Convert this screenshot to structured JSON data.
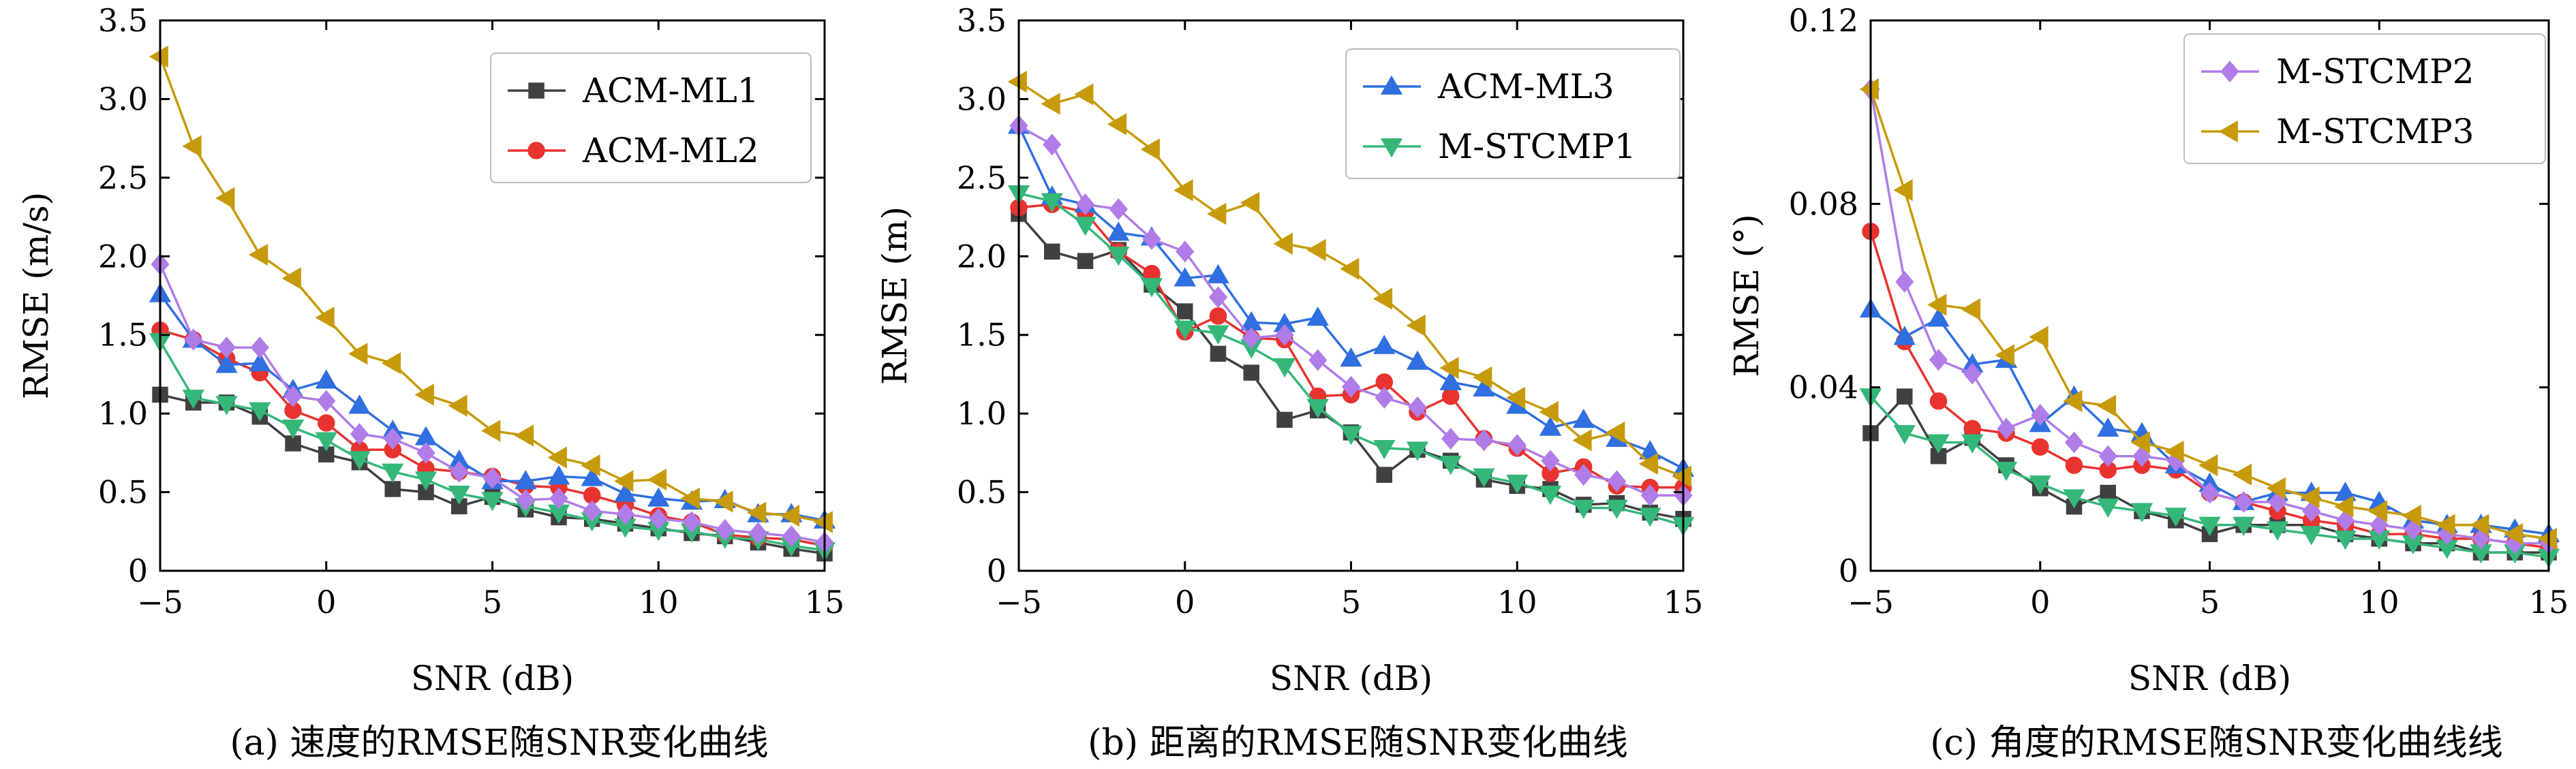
{
  "colors": {
    "ACM-ML1": "#404040",
    "ACM-ML2": "#e8332f",
    "ACM-ML3": "#2f6fe0",
    "M-STCMP1": "#35b779",
    "M-STCMP2": "#b07ce8",
    "M-STCMP3": "#c79a0b"
  },
  "markers": {
    "ACM-ML1": "square",
    "ACM-ML2": "circle",
    "ACM-ML3": "triangle-up",
    "M-STCMP1": "triangle-down",
    "M-STCMP2": "diamond",
    "M-STCMP3": "triangle-left"
  },
  "chart_data": [
    {
      "type": "line",
      "caption": "(a) 速度的RMSE随SNR变化曲线",
      "xlabel": "SNR (dB)",
      "ylabel": "RMSE (m/s)",
      "xlim": [
        -5,
        15
      ],
      "ylim": [
        0,
        3.5
      ],
      "xticks": [
        -5,
        0,
        5,
        10,
        15
      ],
      "xtick_labels": [
        "−5",
        "0",
        "5",
        "10",
        "15"
      ],
      "yticks": [
        0,
        0.5,
        1.0,
        1.5,
        2.0,
        2.5,
        3.0,
        3.5
      ],
      "ytick_labels": [
        "0",
        "0.5",
        "1.0",
        "1.5",
        "2.0",
        "2.5",
        "3.0",
        "3.5"
      ],
      "grid": false,
      "legend_position": "top-right",
      "legend": [
        "ACM-ML1",
        "ACM-ML2"
      ],
      "x": [
        -5,
        -4,
        -3,
        -2,
        -1,
        0,
        1,
        2,
        3,
        4,
        5,
        6,
        7,
        8,
        9,
        10,
        11,
        12,
        13,
        14,
        15
      ],
      "series": [
        {
          "name": "ACM-ML1",
          "values": [
            1.12,
            1.07,
            1.07,
            0.98,
            0.81,
            0.74,
            0.69,
            0.52,
            0.5,
            0.41,
            0.47,
            0.39,
            0.34,
            0.33,
            0.3,
            0.27,
            0.24,
            0.22,
            0.18,
            0.14,
            0.11
          ]
        },
        {
          "name": "ACM-ML2",
          "values": [
            1.53,
            1.47,
            1.35,
            1.26,
            1.02,
            0.94,
            0.77,
            0.77,
            0.65,
            0.63,
            0.6,
            0.54,
            0.53,
            0.48,
            0.42,
            0.35,
            0.31,
            0.23,
            0.21,
            0.2,
            0.16
          ]
        },
        {
          "name": "ACM-ML3",
          "values": [
            1.76,
            1.47,
            1.31,
            1.32,
            1.15,
            1.21,
            1.05,
            0.89,
            0.85,
            0.7,
            0.57,
            0.57,
            0.6,
            0.59,
            0.49,
            0.46,
            0.44,
            0.45,
            0.36,
            0.36,
            0.32
          ]
        },
        {
          "name": "M-STCMP1",
          "values": [
            1.46,
            1.1,
            1.06,
            1.02,
            0.91,
            0.83,
            0.71,
            0.63,
            0.58,
            0.49,
            0.45,
            0.41,
            0.37,
            0.32,
            0.28,
            0.26,
            0.25,
            0.21,
            0.2,
            0.16,
            0.13
          ]
        },
        {
          "name": "M-STCMP2",
          "values": [
            1.95,
            1.47,
            1.42,
            1.42,
            1.11,
            1.08,
            0.87,
            0.84,
            0.75,
            0.63,
            0.59,
            0.45,
            0.46,
            0.38,
            0.36,
            0.33,
            0.31,
            0.26,
            0.24,
            0.22,
            0.18
          ]
        },
        {
          "name": "M-STCMP3",
          "values": [
            3.27,
            2.7,
            2.37,
            2.01,
            1.86,
            1.61,
            1.38,
            1.32,
            1.12,
            1.05,
            0.89,
            0.86,
            0.72,
            0.67,
            0.57,
            0.58,
            0.46,
            0.44,
            0.37,
            0.35,
            0.31
          ]
        }
      ]
    },
    {
      "type": "line",
      "caption": "(b) 距离的RMSE随SNR变化曲线",
      "xlabel": "SNR (dB)",
      "ylabel": "RMSE (m)",
      "xlim": [
        -5,
        15
      ],
      "ylim": [
        0,
        3.5
      ],
      "xticks": [
        -5,
        0,
        5,
        10,
        15
      ],
      "xtick_labels": [
        "−5",
        "0",
        "5",
        "10",
        "15"
      ],
      "yticks": [
        0,
        0.5,
        1.0,
        1.5,
        2.0,
        2.5,
        3.0,
        3.5
      ],
      "ytick_labels": [
        "0",
        "0.5",
        "1.0",
        "1.5",
        "2.0",
        "2.5",
        "3.0",
        "3.5"
      ],
      "grid": false,
      "legend_position": "top-right",
      "legend": [
        "ACM-ML3",
        "M-STCMP1"
      ],
      "x": [
        -5,
        -4,
        -3,
        -2,
        -1,
        0,
        1,
        2,
        3,
        4,
        5,
        6,
        7,
        8,
        9,
        10,
        11,
        12,
        13,
        14,
        15
      ],
      "series": [
        {
          "name": "ACM-ML1",
          "values": [
            2.27,
            2.03,
            1.97,
            2.04,
            1.82,
            1.65,
            1.38,
            1.26,
            0.96,
            1.02,
            0.88,
            0.61,
            0.77,
            0.7,
            0.58,
            0.54,
            0.52,
            0.42,
            0.43,
            0.37,
            0.33
          ]
        },
        {
          "name": "ACM-ML2",
          "values": [
            2.31,
            2.33,
            2.28,
            2.03,
            1.89,
            1.52,
            1.62,
            1.48,
            1.47,
            1.11,
            1.12,
            1.2,
            1.01,
            1.11,
            0.84,
            0.78,
            0.62,
            0.66,
            0.54,
            0.53,
            0.53
          ]
        },
        {
          "name": "ACM-ML3",
          "values": [
            2.83,
            2.38,
            2.33,
            2.15,
            2.12,
            1.86,
            1.88,
            1.58,
            1.57,
            1.61,
            1.35,
            1.43,
            1.33,
            1.2,
            1.16,
            1.05,
            0.91,
            0.96,
            0.84,
            0.76,
            0.65
          ]
        },
        {
          "name": "M-STCMP1",
          "values": [
            2.4,
            2.35,
            2.2,
            2.01,
            1.81,
            1.54,
            1.51,
            1.42,
            1.3,
            1.04,
            0.87,
            0.78,
            0.77,
            0.68,
            0.6,
            0.56,
            0.49,
            0.4,
            0.4,
            0.35,
            0.29
          ]
        },
        {
          "name": "M-STCMP2",
          "values": [
            2.83,
            2.71,
            2.33,
            2.3,
            2.11,
            2.03,
            1.74,
            1.48,
            1.5,
            1.34,
            1.17,
            1.1,
            1.04,
            0.84,
            0.83,
            0.8,
            0.7,
            0.61,
            0.57,
            0.48,
            0.48
          ]
        },
        {
          "name": "M-STCMP3",
          "values": [
            3.11,
            2.97,
            3.03,
            2.84,
            2.68,
            2.42,
            2.27,
            2.34,
            2.08,
            2.04,
            1.92,
            1.73,
            1.56,
            1.29,
            1.23,
            1.1,
            1.01,
            0.83,
            0.88,
            0.68,
            0.6
          ]
        }
      ]
    },
    {
      "type": "line",
      "caption": "(c) 角度的RMSE随SNR变化曲线线",
      "xlabel": "SNR (dB)",
      "ylabel": "RMSE (°)",
      "xlim": [
        -5,
        15
      ],
      "ylim": [
        0,
        0.12
      ],
      "xticks": [
        -5,
        0,
        5,
        10,
        15
      ],
      "xtick_labels": [
        "−5",
        "0",
        "5",
        "10",
        "15"
      ],
      "yticks": [
        0,
        0.04,
        0.08,
        0.12
      ],
      "ytick_labels": [
        "0",
        "0.04",
        "0.08",
        "0.12"
      ],
      "grid": false,
      "legend_position": "top-right",
      "legend": [
        "M-STCMP2",
        "M-STCMP3"
      ],
      "x": [
        -5,
        -4,
        -3,
        -2,
        -1,
        0,
        1,
        2,
        3,
        4,
        5,
        6,
        7,
        8,
        9,
        10,
        11,
        12,
        13,
        14,
        15
      ],
      "series": [
        {
          "name": "ACM-ML1",
          "values": [
            0.03,
            0.038,
            0.025,
            0.029,
            0.023,
            0.018,
            0.014,
            0.017,
            0.013,
            0.011,
            0.008,
            0.01,
            0.01,
            0.01,
            0.008,
            0.007,
            0.006,
            0.006,
            0.004,
            0.004,
            0.004
          ]
        },
        {
          "name": "ACM-ML2",
          "values": [
            0.074,
            0.05,
            0.037,
            0.031,
            0.03,
            0.027,
            0.023,
            0.022,
            0.023,
            0.022,
            0.017,
            0.015,
            0.013,
            0.011,
            0.01,
            0.008,
            0.008,
            0.007,
            0.007,
            0.006,
            0.005
          ]
        },
        {
          "name": "ACM-ML3",
          "values": [
            0.057,
            0.051,
            0.055,
            0.045,
            0.046,
            0.032,
            0.038,
            0.031,
            0.03,
            0.023,
            0.019,
            0.015,
            0.017,
            0.017,
            0.017,
            0.015,
            0.011,
            0.01,
            0.01,
            0.009,
            0.008
          ]
        },
        {
          "name": "M-STCMP1",
          "values": [
            0.038,
            0.03,
            0.028,
            0.028,
            0.022,
            0.019,
            0.016,
            0.014,
            0.013,
            0.012,
            0.01,
            0.01,
            0.009,
            0.008,
            0.007,
            0.007,
            0.006,
            0.005,
            0.004,
            0.004,
            0.003
          ]
        },
        {
          "name": "M-STCMP2",
          "values": [
            0.105,
            0.063,
            0.046,
            0.043,
            0.031,
            0.034,
            0.028,
            0.025,
            0.025,
            0.024,
            0.017,
            0.015,
            0.015,
            0.013,
            0.011,
            0.01,
            0.009,
            0.008,
            0.007,
            0.006,
            0.006
          ]
        },
        {
          "name": "M-STCMP3",
          "values": [
            0.105,
            0.083,
            0.058,
            0.057,
            0.047,
            0.051,
            0.037,
            0.036,
            0.028,
            0.026,
            0.023,
            0.021,
            0.018,
            0.016,
            0.014,
            0.013,
            0.012,
            0.01,
            0.01,
            0.008,
            0.007
          ]
        }
      ]
    }
  ]
}
